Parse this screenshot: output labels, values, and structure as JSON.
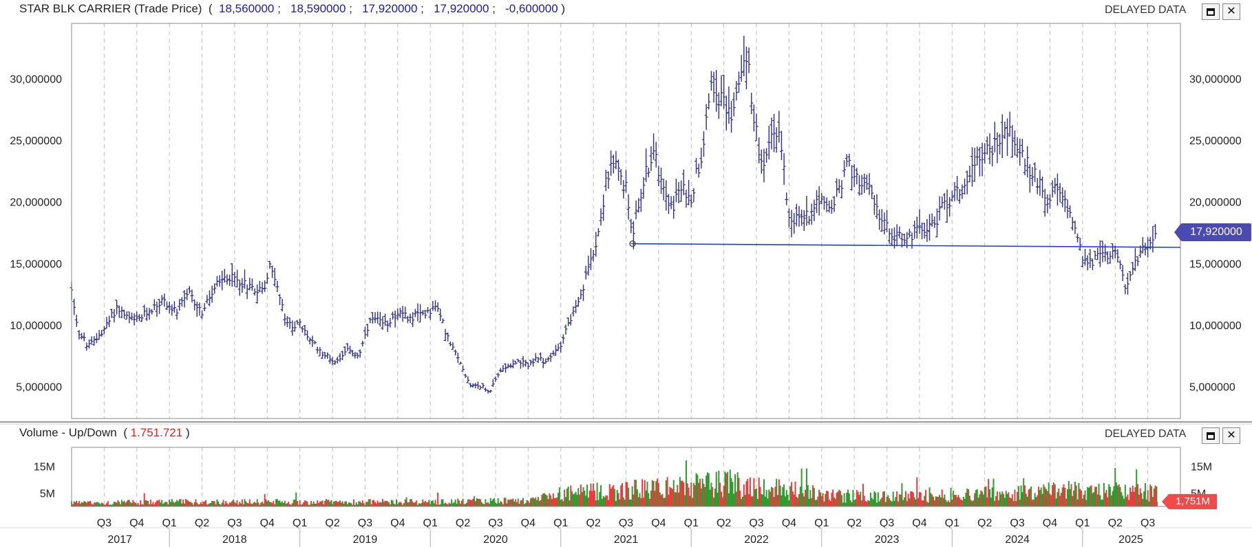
{
  "price_panel": {
    "title": "STAR BLK CARRIER (Trade Price)",
    "open": "18,560000",
    "high": "18,590000",
    "low": "17,920000",
    "close": "17,920000",
    "change": "-0,600000",
    "delayed": "DELAYED DATA",
    "last_price_tag": "17,920000",
    "maximize_icon": "maximize-icon",
    "close_icon": "close-icon"
  },
  "volume_panel": {
    "title": "Volume - Up/Down",
    "value": "1.751.721",
    "delayed": "DELAYED DATA",
    "last_volume_tag": "1,751M"
  },
  "colors": {
    "price_line": "#2b2b8f",
    "trend_line": "#1f3fd0",
    "up": "#2e9a2e",
    "down": "#e83b3b",
    "tag_bg": "#4a4ab0",
    "vol_tag_bg": "#f04a4a",
    "grid": "#bdbdbd"
  },
  "chart_data": [
    {
      "type": "ohlc",
      "title": "STAR BLK CARRIER (Trade Price)",
      "y_ticks": [
        "5,000000",
        "10,000000",
        "15,000000",
        "20,000000",
        "25,000000",
        "30,000000"
      ],
      "y_tick_values": [
        5,
        10,
        15,
        20,
        25,
        30
      ],
      "ylim": [
        2.4,
        34.5
      ],
      "x_range": [
        2017.25,
        2025.75
      ],
      "series": [
        {
          "name": "STAR BLK CARRIER",
          "points": [
            [
              2017.25,
              13.0
            ],
            [
              2017.3,
              9.5
            ],
            [
              2017.38,
              8.2
            ],
            [
              2017.45,
              9.0
            ],
            [
              2017.52,
              10.0
            ],
            [
              2017.6,
              11.5
            ],
            [
              2017.68,
              10.5
            ],
            [
              2017.75,
              10.3
            ],
            [
              2017.85,
              11.2
            ],
            [
              2017.95,
              12.0
            ],
            [
              2018.05,
              11.0
            ],
            [
              2018.15,
              12.5
            ],
            [
              2018.25,
              11.0
            ],
            [
              2018.35,
              13.0
            ],
            [
              2018.45,
              14.0
            ],
            [
              2018.55,
              13.5
            ],
            [
              2018.65,
              13.0
            ],
            [
              2018.72,
              12.8
            ],
            [
              2018.78,
              15.0
            ],
            [
              2018.85,
              12.0
            ],
            [
              2018.9,
              10.0
            ],
            [
              2019.0,
              10.0
            ],
            [
              2019.1,
              8.5
            ],
            [
              2019.2,
              7.5
            ],
            [
              2019.28,
              7.0
            ],
            [
              2019.35,
              8.0
            ],
            [
              2019.45,
              7.5
            ],
            [
              2019.55,
              10.5
            ],
            [
              2019.65,
              10.0
            ],
            [
              2019.75,
              11.0
            ],
            [
              2019.85,
              10.5
            ],
            [
              2019.95,
              11.0
            ],
            [
              2020.05,
              11.5
            ],
            [
              2020.15,
              8.5
            ],
            [
              2020.25,
              6.5
            ],
            [
              2020.3,
              5.2
            ],
            [
              2020.4,
              5.0
            ],
            [
              2020.45,
              4.5
            ],
            [
              2020.55,
              6.5
            ],
            [
              2020.65,
              7.0
            ],
            [
              2020.75,
              6.8
            ],
            [
              2020.82,
              7.2
            ],
            [
              2020.9,
              7.0
            ],
            [
              2021.0,
              8.5
            ],
            [
              2021.05,
              10.0
            ],
            [
              2021.15,
              12.0
            ],
            [
              2021.22,
              15.0
            ],
            [
              2021.3,
              18.0
            ],
            [
              2021.35,
              22.0
            ],
            [
              2021.42,
              23.0
            ],
            [
              2021.5,
              21.0
            ],
            [
              2021.55,
              17.5
            ],
            [
              2021.62,
              21.0
            ],
            [
              2021.7,
              24.0
            ],
            [
              2021.78,
              22.0
            ],
            [
              2021.85,
              19.5
            ],
            [
              2021.92,
              21.0
            ],
            [
              2022.0,
              20.5
            ],
            [
              2022.08,
              24.0
            ],
            [
              2022.15,
              30.0
            ],
            [
              2022.22,
              28.5
            ],
            [
              2022.3,
              27.0
            ],
            [
              2022.38,
              30.0
            ],
            [
              2022.42,
              32.5
            ],
            [
              2022.48,
              27.0
            ],
            [
              2022.55,
              22.0
            ],
            [
              2022.62,
              26.0
            ],
            [
              2022.68,
              25.5
            ],
            [
              2022.75,
              19.0
            ],
            [
              2022.82,
              18.5
            ],
            [
              2022.9,
              19.0
            ],
            [
              2022.98,
              20.5
            ],
            [
              2023.05,
              19.0
            ],
            [
              2023.12,
              20.5
            ],
            [
              2023.2,
              23.0
            ],
            [
              2023.28,
              22.0
            ],
            [
              2023.35,
              21.0
            ],
            [
              2023.42,
              19.5
            ],
            [
              2023.5,
              17.8
            ],
            [
              2023.58,
              17.2
            ],
            [
              2023.65,
              17.0
            ],
            [
              2023.72,
              17.5
            ],
            [
              2023.8,
              18.0
            ],
            [
              2023.88,
              18.5
            ],
            [
              2023.95,
              20.0
            ],
            [
              2024.02,
              20.5
            ],
            [
              2024.1,
              21.5
            ],
            [
              2024.18,
              23.5
            ],
            [
              2024.25,
              24.0
            ],
            [
              2024.32,
              24.5
            ],
            [
              2024.4,
              26.0
            ],
            [
              2024.45,
              25.5
            ],
            [
              2024.52,
              24.0
            ],
            [
              2024.6,
              22.5
            ],
            [
              2024.68,
              21.5
            ],
            [
              2024.75,
              20.0
            ],
            [
              2024.8,
              21.0
            ],
            [
              2024.88,
              19.5
            ],
            [
              2024.95,
              18.0
            ],
            [
              2025.0,
              15.5
            ],
            [
              2025.05,
              15.0
            ],
            [
              2025.12,
              15.5
            ],
            [
              2025.2,
              15.8
            ],
            [
              2025.25,
              16.5
            ],
            [
              2025.3,
              14.5
            ],
            [
              2025.33,
              12.5
            ],
            [
              2025.38,
              14.5
            ],
            [
              2025.45,
              16.0
            ],
            [
              2025.52,
              17.0
            ],
            [
              2025.57,
              17.92
            ]
          ]
        }
      ],
      "trend_line": {
        "x": [
          2021.55,
          2025.75
        ],
        "y": [
          16.6,
          16.3
        ]
      }
    },
    {
      "type": "bar",
      "title": "Volume - Up/Down",
      "y_ticks": [
        "5M",
        "15M"
      ],
      "y_tick_values": [
        5,
        15
      ],
      "ylim": [
        0,
        22
      ],
      "series": [
        {
          "name": "Up"
        },
        {
          "name": "Down"
        }
      ],
      "x_axis": {
        "quarters": [
          {
            "label": "Q3",
            "x": 2017.5
          },
          {
            "label": "Q4",
            "x": 2017.75
          },
          {
            "label": "Q1",
            "x": 2018.0
          },
          {
            "label": "Q2",
            "x": 2018.25
          },
          {
            "label": "Q3",
            "x": 2018.5
          },
          {
            "label": "Q4",
            "x": 2018.75
          },
          {
            "label": "Q1",
            "x": 2019.0
          },
          {
            "label": "Q2",
            "x": 2019.25
          },
          {
            "label": "Q3",
            "x": 2019.5
          },
          {
            "label": "Q4",
            "x": 2019.75
          },
          {
            "label": "Q1",
            "x": 2020.0
          },
          {
            "label": "Q2",
            "x": 2020.25
          },
          {
            "label": "Q3",
            "x": 2020.5
          },
          {
            "label": "Q4",
            "x": 2020.75
          },
          {
            "label": "Q1",
            "x": 2021.0
          },
          {
            "label": "Q2",
            "x": 2021.25
          },
          {
            "label": "Q3",
            "x": 2021.5
          },
          {
            "label": "Q4",
            "x": 2021.75
          },
          {
            "label": "Q1",
            "x": 2022.0
          },
          {
            "label": "Q2",
            "x": 2022.25
          },
          {
            "label": "Q3",
            "x": 2022.5
          },
          {
            "label": "Q4",
            "x": 2022.75
          },
          {
            "label": "Q1",
            "x": 2023.0
          },
          {
            "label": "Q2",
            "x": 2023.25
          },
          {
            "label": "Q3",
            "x": 2023.5
          },
          {
            "label": "Q4",
            "x": 2023.75
          },
          {
            "label": "Q1",
            "x": 2024.0
          },
          {
            "label": "Q2",
            "x": 2024.25
          },
          {
            "label": "Q3",
            "x": 2024.5
          },
          {
            "label": "Q4",
            "x": 2024.75
          },
          {
            "label": "Q1",
            "x": 2025.0
          },
          {
            "label": "Q2",
            "x": 2025.25
          },
          {
            "label": "Q3",
            "x": 2025.5
          }
        ],
        "years": [
          {
            "label": "2017",
            "x": 2017.62
          },
          {
            "label": "2018",
            "x": 2018.5
          },
          {
            "label": "2019",
            "x": 2019.5
          },
          {
            "label": "2020",
            "x": 2020.5
          },
          {
            "label": "2021",
            "x": 2021.5
          },
          {
            "label": "2022",
            "x": 2022.5
          },
          {
            "label": "2023",
            "x": 2023.5
          },
          {
            "label": "2024",
            "x": 2024.5
          },
          {
            "label": "2025",
            "x": 2025.37
          }
        ],
        "year_dividers": [
          2018.0,
          2019.0,
          2020.0,
          2021.0,
          2022.0,
          2023.0,
          2024.0,
          2025.0
        ]
      },
      "profile": [
        [
          2017.25,
          1.5
        ],
        [
          2018.0,
          2.0
        ],
        [
          2019.0,
          2.0
        ],
        [
          2020.0,
          2.0
        ],
        [
          2020.8,
          2.5
        ],
        [
          2021.0,
          5.5
        ],
        [
          2021.5,
          7.0
        ],
        [
          2022.0,
          9.0
        ],
        [
          2022.3,
          10.0
        ],
        [
          2022.8,
          7.0
        ],
        [
          2023.0,
          5.0
        ],
        [
          2023.5,
          4.0
        ],
        [
          2024.0,
          5.0
        ],
        [
          2024.5,
          6.0
        ],
        [
          2025.0,
          7.0
        ],
        [
          2025.3,
          6.5
        ],
        [
          2025.6,
          6.0
        ]
      ],
      "last_value": 1.751721
    }
  ]
}
